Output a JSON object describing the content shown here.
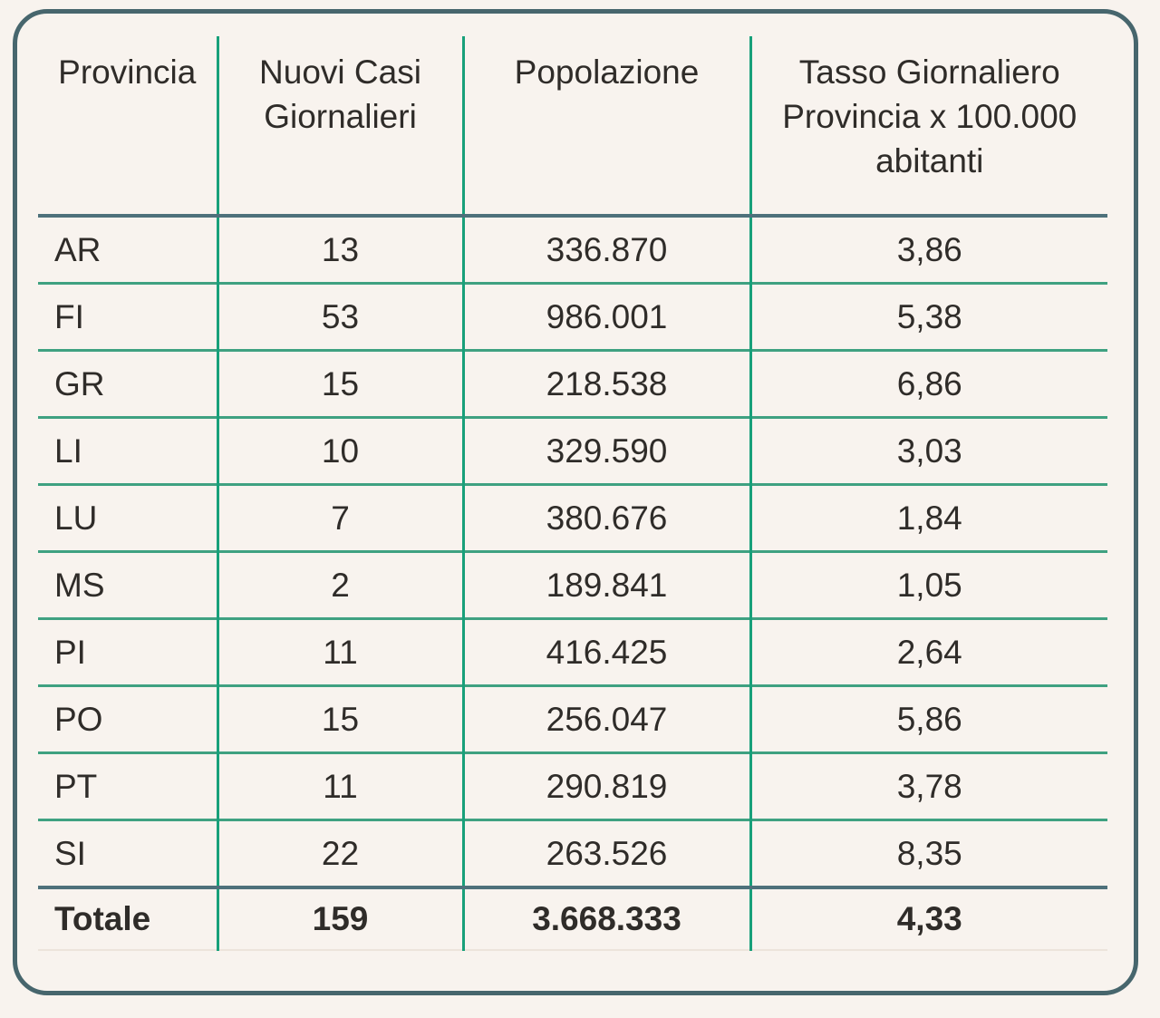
{
  "chart_data": {
    "type": "table",
    "columns": [
      "Provincia",
      "Nuovi Casi Giornalieri",
      "Popolazione",
      "Tasso Giornaliero Provincia x 100.000 abitanti"
    ],
    "rows": [
      [
        "AR",
        "13",
        "336.870",
        "3,86"
      ],
      [
        "FI",
        "53",
        "986.001",
        "5,38"
      ],
      [
        "GR",
        "15",
        "218.538",
        "6,86"
      ],
      [
        "LI",
        "10",
        "329.590",
        "3,03"
      ],
      [
        "LU",
        "7",
        "380.676",
        "1,84"
      ],
      [
        "MS",
        "2",
        "189.841",
        "1,05"
      ],
      [
        "PI",
        "11",
        "416.425",
        "2,64"
      ],
      [
        "PO",
        "15",
        "256.047",
        "5,86"
      ],
      [
        "PT",
        "11",
        "290.819",
        "3,78"
      ],
      [
        "SI",
        "22",
        "263.526",
        "8,35"
      ]
    ],
    "total_row": [
      "Totale",
      "159",
      "3.668.333",
      "4,33"
    ]
  },
  "colors": {
    "background": "#f8f3ee",
    "card_border": "#47666d",
    "column_line_green": "#18a07a",
    "row_line_green": "#3fa181",
    "divider_slate": "#4e717b",
    "text": "#2f2c29"
  }
}
